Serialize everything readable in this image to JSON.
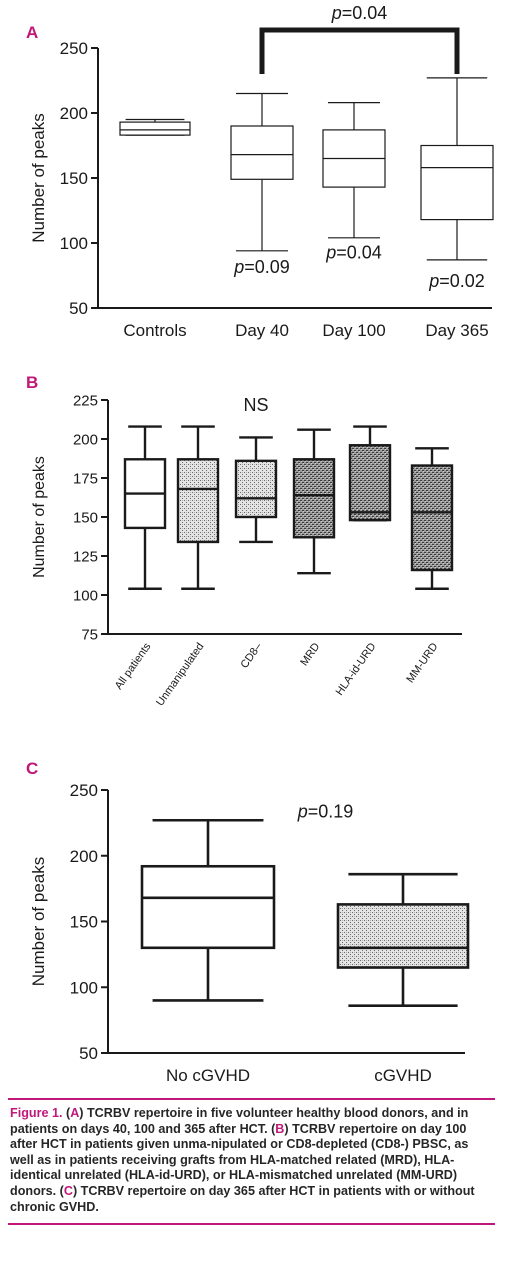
{
  "colors": {
    "accent": "#c0187a",
    "ink": "#1a1a1a",
    "hatch": "#7a7a7a"
  },
  "chart_data": [
    {
      "panel": "A",
      "type": "boxplot",
      "ylabel": "Number of peaks",
      "ylim": [
        50,
        250
      ],
      "yticks": [
        50,
        100,
        150,
        200,
        250
      ],
      "categories": [
        "Controls",
        "Day 40",
        "Day 100",
        "Day 365"
      ],
      "boxes": [
        {
          "min": 183,
          "q1": 183,
          "median": 187,
          "q3": 193,
          "max": 195,
          "fill": "white"
        },
        {
          "min": 94,
          "q1": 149,
          "median": 168,
          "q3": 190,
          "max": 215,
          "fill": "white"
        },
        {
          "min": 104,
          "q1": 143,
          "median": 165,
          "q3": 187,
          "max": 208,
          "fill": "white"
        },
        {
          "min": 87,
          "q1": 118,
          "median": 158,
          "q3": 175,
          "max": 227,
          "fill": "white"
        }
      ],
      "annotations": [
        {
          "text": "=0.09",
          "italic_prefix": "p",
          "category": "Day 40",
          "y": 77
        },
        {
          "text": "=0.04",
          "italic_prefix": "p",
          "category": "Day 100",
          "y": 88
        },
        {
          "text": "=0.02",
          "italic_prefix": "p",
          "category": "Day 365",
          "y": 66
        }
      ],
      "bracket": {
        "from": "Day 40",
        "to": "Day 365",
        "text": "=0.04",
        "italic_prefix": "p"
      }
    },
    {
      "panel": "B",
      "type": "boxplot",
      "ylabel": "Number of peaks",
      "ylim": [
        75,
        225
      ],
      "yticks": [
        75,
        100,
        125,
        150,
        175,
        200,
        225
      ],
      "categories": [
        "All patients",
        "Unmanipulated",
        "CD8–",
        "MRD",
        "HLA-id-URD",
        "MM-URD"
      ],
      "boxes": [
        {
          "min": 104,
          "q1": 143,
          "median": 165,
          "q3": 187,
          "max": 208,
          "fill": "white"
        },
        {
          "min": 104,
          "q1": 134,
          "median": 168,
          "q3": 187,
          "max": 208,
          "fill": "light"
        },
        {
          "min": 134,
          "q1": 150,
          "median": 162,
          "q3": 186,
          "max": 201,
          "fill": "light"
        },
        {
          "min": 114,
          "q1": 137,
          "median": 164,
          "q3": 187,
          "max": 206,
          "fill": "dark"
        },
        {
          "min": 148,
          "q1": 148,
          "median": 153,
          "q3": 196,
          "max": 208,
          "fill": "dark"
        },
        {
          "min": 104,
          "q1": 116,
          "median": 153,
          "q3": 183,
          "max": 194,
          "fill": "dark"
        }
      ],
      "annotations": [
        {
          "text": "NS",
          "category": "CD8–",
          "y": 218
        }
      ]
    },
    {
      "panel": "C",
      "type": "boxplot",
      "ylabel": "Number of peaks",
      "ylim": [
        50,
        250
      ],
      "yticks": [
        50,
        100,
        150,
        200,
        250
      ],
      "categories": [
        "No cGVHD",
        "cGVHD"
      ],
      "boxes": [
        {
          "min": 90,
          "q1": 130,
          "median": 168,
          "q3": 192,
          "max": 227,
          "fill": "white"
        },
        {
          "min": 86,
          "q1": 115,
          "median": 130,
          "q3": 163,
          "max": 186,
          "fill": "light"
        }
      ],
      "annotations": [
        {
          "text": "=0.19",
          "italic_prefix": "p",
          "category": "center",
          "y": 229
        }
      ]
    }
  ],
  "caption": {
    "lead": "Figure 1.",
    "parts": [
      {
        "t": " (",
        "m": false
      },
      {
        "t": "A",
        "m": true
      },
      {
        "t": ") TCRBV repertoire in five volunteer healthy blood donors, and in patients on days 40, 100 and 365 after HCT. (",
        "m": false
      },
      {
        "t": "B",
        "m": true
      },
      {
        "t": ") TCRBV repertoire on day 100 after HCT in patients given unma-nipulated or CD8-depleted (CD8-) PBSC, as well as in patients receiving grafts from HLA-matched related (MRD), HLA-identical unrelated (HLA-id-URD), or HLA-mismatched unrelated (MM-URD) donors. (",
        "m": false
      },
      {
        "t": "C",
        "m": true
      },
      {
        "t": ") TCRBV repertoire on day 365 after HCT in patients with or without chronic GVHD.",
        "m": false
      }
    ]
  }
}
